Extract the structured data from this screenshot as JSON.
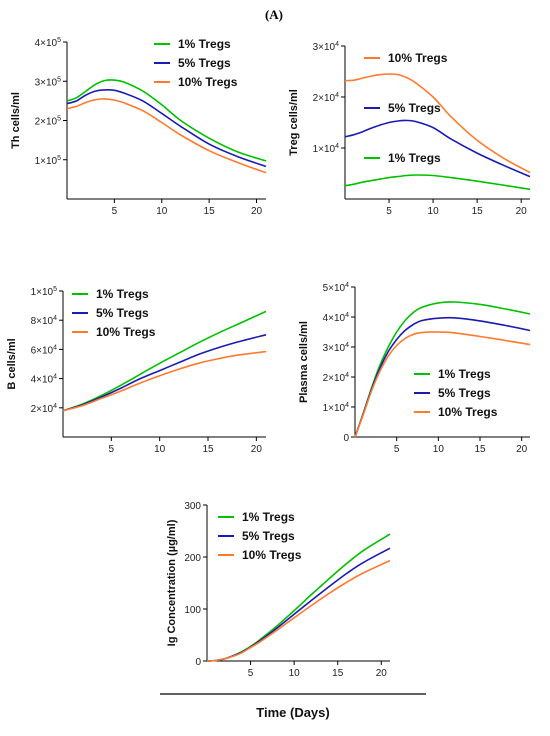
{
  "figure": {
    "panel_label": "(A)",
    "x_axis_title": "Time (Days)",
    "colors": {
      "1% Tregs": "#00c000",
      "5% Tregs": "#1a1ab4",
      "10% Tregs": "#ff7a2e"
    }
  },
  "chart_data": [
    {
      "type": "line",
      "ylabel": "Th cells/ml",
      "xlim": [
        0,
        21
      ],
      "ylim": [
        0,
        400000
      ],
      "xticks": [
        5,
        10,
        15,
        20
      ],
      "yticks": [
        {
          "v": 100000,
          "m": "1",
          "e": "5"
        },
        {
          "v": 200000,
          "m": "2",
          "e": "5"
        },
        {
          "v": 300000,
          "m": "3",
          "e": "5"
        },
        {
          "v": 400000,
          "m": "4",
          "e": "5"
        }
      ],
      "legend": "top-right",
      "legend_order": [
        "1% Tregs",
        "5% Tregs",
        "10% Tregs"
      ],
      "x": [
        0,
        1,
        2,
        3,
        4,
        5,
        6,
        8,
        10,
        12,
        15,
        18,
        21
      ],
      "series": [
        {
          "name": "1% Tregs",
          "color": "#00c000",
          "values": [
            250000,
            258000,
            275000,
            292000,
            302000,
            303000,
            298000,
            275000,
            240000,
            200000,
            155000,
            120000,
            97000
          ]
        },
        {
          "name": "5% Tregs",
          "color": "#1a1ab4",
          "values": [
            243000,
            250000,
            265000,
            275000,
            278000,
            277000,
            270000,
            250000,
            218000,
            185000,
            140000,
            108000,
            83000
          ]
        },
        {
          "name": "10% Tregs",
          "color": "#ff7a2e",
          "values": [
            230000,
            236000,
            246000,
            253000,
            255000,
            252000,
            245000,
            225000,
            195000,
            163000,
            123000,
            93000,
            67000
          ]
        }
      ]
    },
    {
      "type": "line",
      "ylabel": "Treg cells/ml",
      "xlim": [
        0,
        21
      ],
      "ylim": [
        0,
        30000
      ],
      "xticks": [
        5,
        10,
        15,
        20
      ],
      "yticks": [
        {
          "v": 10000,
          "m": "1",
          "e": "4"
        },
        {
          "v": 20000,
          "m": "2",
          "e": "4"
        },
        {
          "v": 30000,
          "m": "3",
          "e": "4"
        }
      ],
      "legend": "inline",
      "legend_order": [
        "10% Tregs",
        "5% Tregs",
        "1% Tregs"
      ],
      "x": [
        0,
        1,
        2,
        3,
        4,
        5,
        6,
        7,
        8,
        10,
        12,
        15,
        18,
        21
      ],
      "series": [
        {
          "name": "1% Tregs",
          "color": "#00c000",
          "values": [
            2600,
            2900,
            3300,
            3600,
            3900,
            4200,
            4400,
            4600,
            4700,
            4600,
            4200,
            3500,
            2700,
            1900
          ]
        },
        {
          "name": "5% Tregs",
          "color": "#1a1ab4",
          "values": [
            12200,
            12600,
            13200,
            13900,
            14500,
            15000,
            15300,
            15400,
            15200,
            14000,
            11800,
            9000,
            6600,
            4400
          ]
        },
        {
          "name": "10% Tregs",
          "color": "#ff7a2e",
          "values": [
            23200,
            23300,
            23700,
            24100,
            24400,
            24500,
            24400,
            23800,
            22800,
            20000,
            16200,
            11500,
            8000,
            5200
          ]
        }
      ]
    },
    {
      "type": "line",
      "ylabel": "B cells/ml",
      "xlim": [
        0,
        21
      ],
      "ylim": [
        0,
        100000
      ],
      "xticks": [
        5,
        10,
        15,
        20
      ],
      "yticks": [
        {
          "v": 20000,
          "m": "2",
          "e": "4"
        },
        {
          "v": 40000,
          "m": "4",
          "e": "4"
        },
        {
          "v": 60000,
          "m": "6",
          "e": "4"
        },
        {
          "v": 80000,
          "m": "8",
          "e": "4"
        },
        {
          "v": 100000,
          "m": "1",
          "e": "5"
        }
      ],
      "legend": "top-left",
      "legend_order": [
        "1% Tregs",
        "5% Tregs",
        "10% Tregs"
      ],
      "x": [
        0,
        2,
        4,
        6,
        8,
        10,
        12,
        14,
        16,
        18,
        21
      ],
      "series": [
        {
          "name": "1% Tregs",
          "color": "#00c000",
          "values": [
            18000,
            22500,
            28500,
            35500,
            43000,
            50500,
            57500,
            64500,
            71000,
            77000,
            86000
          ]
        },
        {
          "name": "5% Tregs",
          "color": "#1a1ab4",
          "values": [
            18000,
            22000,
            27500,
            33500,
            40000,
            45500,
            51000,
            56500,
            61000,
            65000,
            70000
          ]
        },
        {
          "name": "10% Tregs",
          "color": "#ff7a2e",
          "values": [
            18000,
            21500,
            26500,
            31500,
            37000,
            42000,
            46500,
            50500,
            53500,
            56000,
            58500
          ]
        }
      ]
    },
    {
      "type": "line",
      "ylabel": "Plasma cells/ml",
      "xlim": [
        0,
        21
      ],
      "ylim": [
        0,
        50000
      ],
      "xticks": [
        5,
        10,
        15,
        20
      ],
      "yticks": [
        {
          "v": 0,
          "m": "0",
          "e": ""
        },
        {
          "v": 10000,
          "m": "1",
          "e": "4"
        },
        {
          "v": 20000,
          "m": "2",
          "e": "4"
        },
        {
          "v": 30000,
          "m": "3",
          "e": "4"
        },
        {
          "v": 40000,
          "m": "4",
          "e": "4"
        },
        {
          "v": 50000,
          "m": "5",
          "e": "4"
        }
      ],
      "legend": "bottom-right",
      "legend_order": [
        "1% Tregs",
        "5% Tregs",
        "10% Tregs"
      ],
      "x": [
        0,
        1,
        2,
        3,
        4,
        5,
        6,
        7,
        8,
        10,
        12,
        15,
        18,
        21
      ],
      "series": [
        {
          "name": "1% Tregs",
          "color": "#00c000",
          "values": [
            0,
            8000,
            16500,
            24000,
            30000,
            35000,
            38800,
            41500,
            43200,
            44700,
            45000,
            44200,
            42700,
            41000
          ]
        },
        {
          "name": "5% Tregs",
          "color": "#1a1ab4",
          "values": [
            0,
            7800,
            16000,
            23000,
            28500,
            32500,
            35500,
            37500,
            38800,
            39600,
            39700,
            38700,
            37200,
            35500
          ]
        },
        {
          "name": "10% Tregs",
          "color": "#ff7a2e",
          "values": [
            0,
            7500,
            15500,
            22000,
            27000,
            30500,
            32800,
            34200,
            34800,
            35000,
            34700,
            33500,
            32200,
            30800
          ]
        }
      ]
    },
    {
      "type": "line",
      "ylabel": "Ig Concentration (µg/ml)",
      "xlim": [
        0,
        21
      ],
      "ylim": [
        0,
        300
      ],
      "xticks": [
        5,
        10,
        15,
        20
      ],
      "yticks": [
        {
          "v": 0,
          "m": "0",
          "e": ""
        },
        {
          "v": 100,
          "m": "100",
          "e": ""
        },
        {
          "v": 200,
          "m": "200",
          "e": ""
        },
        {
          "v": 300,
          "m": "300",
          "e": ""
        }
      ],
      "legend": "top-left",
      "legend_order": [
        "1% Tregs",
        "5% Tregs",
        "10% Tregs"
      ],
      "x": [
        0,
        1,
        2,
        3,
        4,
        5,
        6,
        8,
        10,
        12,
        14,
        16,
        18,
        21
      ],
      "series": [
        {
          "name": "1% Tregs",
          "color": "#00c000",
          "values": [
            0,
            1,
            4,
            10,
            18,
            28,
            40,
            67,
            97,
            128,
            158,
            187,
            213,
            244
          ]
        },
        {
          "name": "5% Tregs",
          "color": "#1a1ab4",
          "values": [
            0,
            1,
            4,
            10,
            17,
            27,
            38,
            63,
            90,
            117,
            143,
            168,
            190,
            217
          ]
        },
        {
          "name": "10% Tregs",
          "color": "#ff7a2e",
          "values": [
            0,
            1,
            4,
            9,
            16,
            26,
            36,
            59,
            83,
            107,
            130,
            151,
            170,
            193
          ]
        }
      ]
    }
  ]
}
